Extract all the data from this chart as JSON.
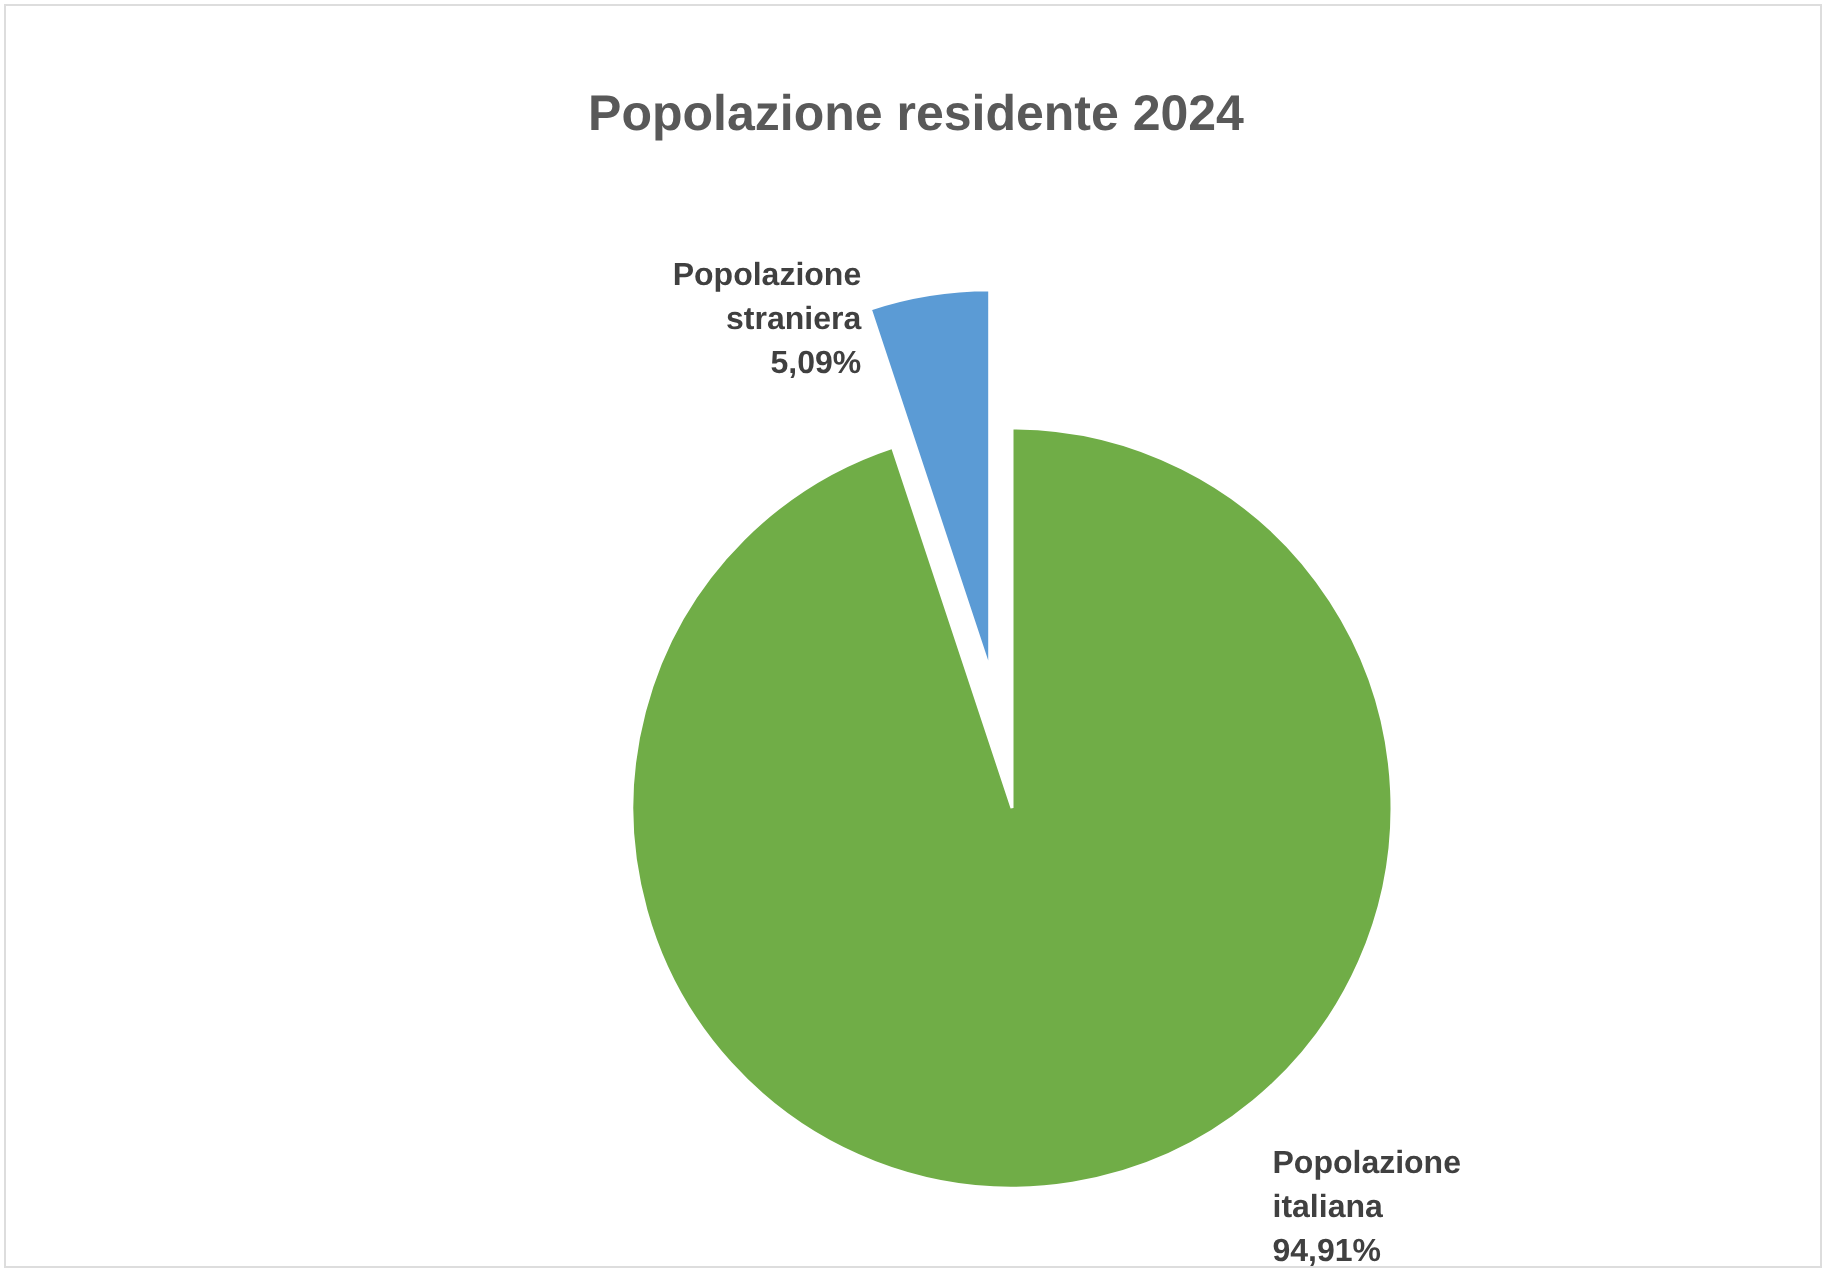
{
  "chart_data": {
    "type": "pie",
    "title": "Popolazione residente 2024",
    "categories": [
      "Popolazione italiana",
      "Popolazione straniera"
    ],
    "values": [
      94.91,
      5.09
    ],
    "colors": [
      "#70ad47",
      "#5b9bd5"
    ],
    "value_labels": [
      "94,91%",
      "5,09%"
    ]
  }
}
